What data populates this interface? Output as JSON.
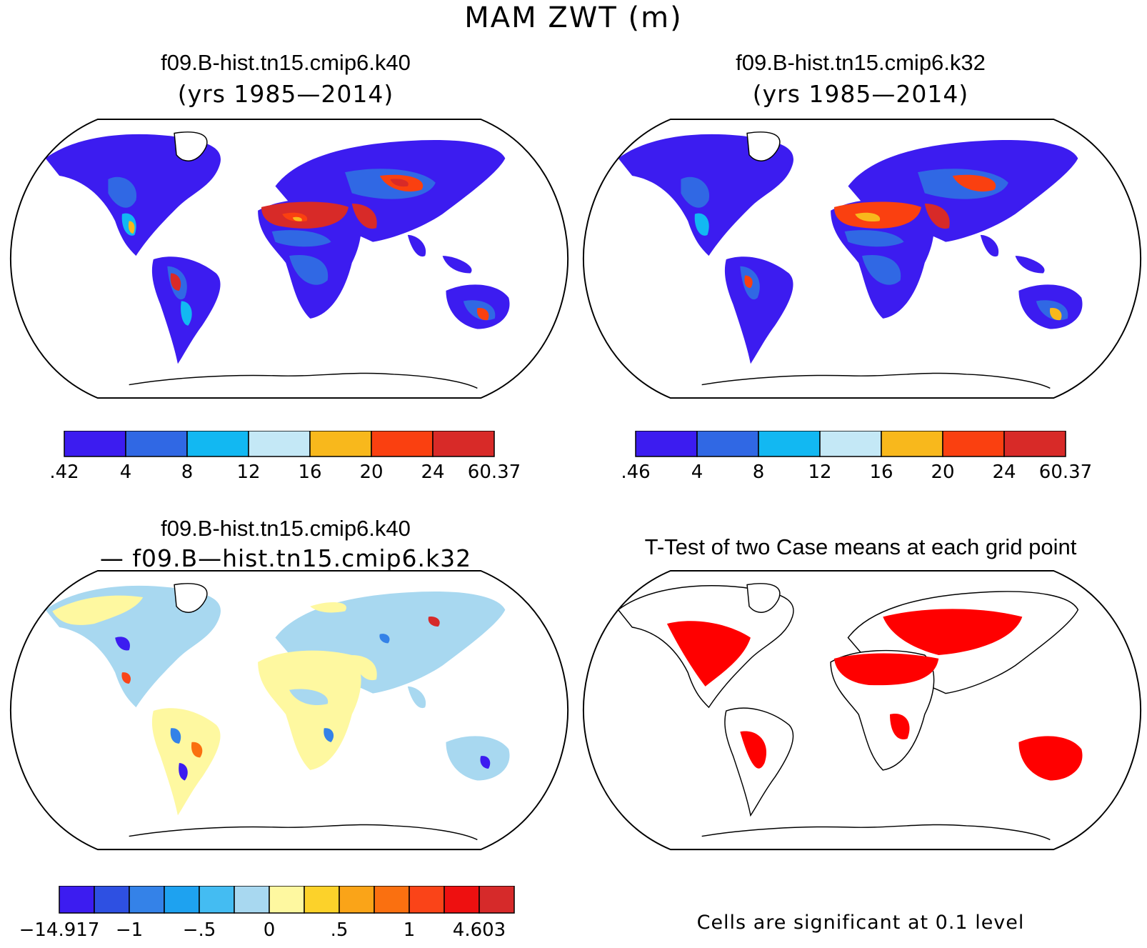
{
  "title": "MAM ZWT (m)",
  "panels": [
    {
      "id": "k40",
      "title": "f09.B-hist.tn15.cmip6.k40",
      "subtitle": "(yrs 1985—2014)",
      "colorbar": {
        "labels": [
          ".42",
          "4",
          "8",
          "12",
          "16",
          "20",
          "24",
          "60.37"
        ],
        "colors": [
          "#3c1cf0",
          "#3068e4",
          "#12b8f2",
          "#c4e8f6",
          "#f8b81c",
          "#fa4010",
          "#d82a28"
        ]
      }
    },
    {
      "id": "k32",
      "title": "f09.B-hist.tn15.cmip6.k32",
      "subtitle": "(yrs 1985—2014)",
      "colorbar": {
        "labels": [
          ".46",
          "4",
          "8",
          "12",
          "16",
          "20",
          "24",
          "60.37"
        ],
        "colors": [
          "#3c1cf0",
          "#3068e4",
          "#12b8f2",
          "#c4e8f6",
          "#f8b81c",
          "#fa4010",
          "#d82a28"
        ]
      }
    },
    {
      "id": "diff",
      "title": "f09.B-hist.tn15.cmip6.k40",
      "subtitle": "— f09.B—hist.tn15.cmip6.k32",
      "colorbar": {
        "labels": [
          "−14.917",
          "−1",
          "−.5",
          "0",
          ".5",
          "1",
          "4.603"
        ],
        "label_positions": [
          0,
          2,
          4,
          6,
          8,
          10,
          12
        ],
        "colors": [
          "#3c1cf0",
          "#2e50e2",
          "#3482e8",
          "#1ea2f0",
          "#44bcf2",
          "#a8d8f0",
          "#fef8a0",
          "#fcd22a",
          "#faa418",
          "#fa7010",
          "#fa4418",
          "#ee1010",
          "#d62a2a"
        ]
      }
    },
    {
      "id": "ttest",
      "title": "T-Test of two Case means at each grid point",
      "note": "Cells are significant at 0.1 level",
      "colors": {
        "significant": "#ff0000"
      }
    }
  ]
}
